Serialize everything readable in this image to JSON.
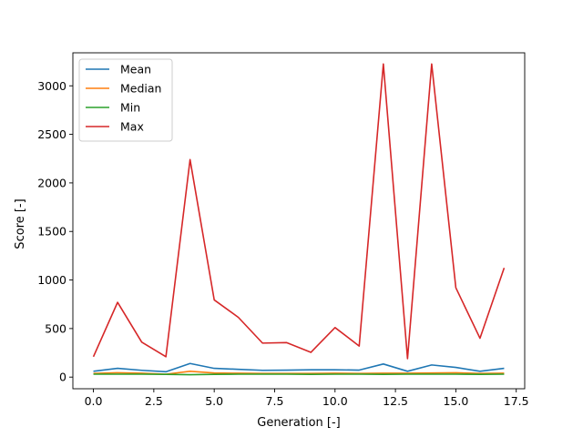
{
  "chart_data": {
    "type": "line",
    "xlabel": "Generation [-]",
    "ylabel": "Score [-]",
    "xlim": [
      -0.85,
      17.85
    ],
    "ylim": [
      -120,
      3340
    ],
    "xticks": [
      0.0,
      2.5,
      5.0,
      7.5,
      10.0,
      12.5,
      15.0,
      17.5
    ],
    "xtick_labels": [
      "0.0",
      "2.5",
      "5.0",
      "7.5",
      "10.0",
      "12.5",
      "15.0",
      "17.5"
    ],
    "yticks": [
      0,
      500,
      1000,
      1500,
      2000,
      2500,
      3000
    ],
    "ytick_labels": [
      "0",
      "500",
      "1000",
      "1500",
      "2000",
      "2500",
      "3000"
    ],
    "legend_position": "top-left",
    "grid": false,
    "x": [
      0,
      1,
      2,
      3,
      4,
      5,
      6,
      7,
      8,
      9,
      10,
      11,
      12,
      13,
      14,
      15,
      16,
      17
    ],
    "series": [
      {
        "name": "Mean",
        "color": "#1f77b4",
        "values": [
          60,
          90,
          70,
          55,
          140,
          90,
          80,
          70,
          72,
          75,
          75,
          72,
          135,
          60,
          125,
          100,
          60,
          90
        ]
      },
      {
        "name": "Median",
        "color": "#ff7f0e",
        "values": [
          38,
          45,
          40,
          30,
          60,
          42,
          40,
          38,
          38,
          38,
          40,
          38,
          40,
          40,
          42,
          45,
          38,
          40
        ]
      },
      {
        "name": "Min",
        "color": "#2ca02c",
        "values": [
          30,
          30,
          30,
          28,
          25,
          28,
          30,
          30,
          30,
          28,
          30,
          30,
          28,
          30,
          30,
          30,
          28,
          30
        ]
      },
      {
        "name": "Max",
        "color": "#d62728",
        "values": [
          210,
          770,
          360,
          210,
          2240,
          795,
          615,
          350,
          355,
          255,
          510,
          320,
          3225,
          190,
          3225,
          920,
          400,
          1125
        ]
      }
    ]
  }
}
